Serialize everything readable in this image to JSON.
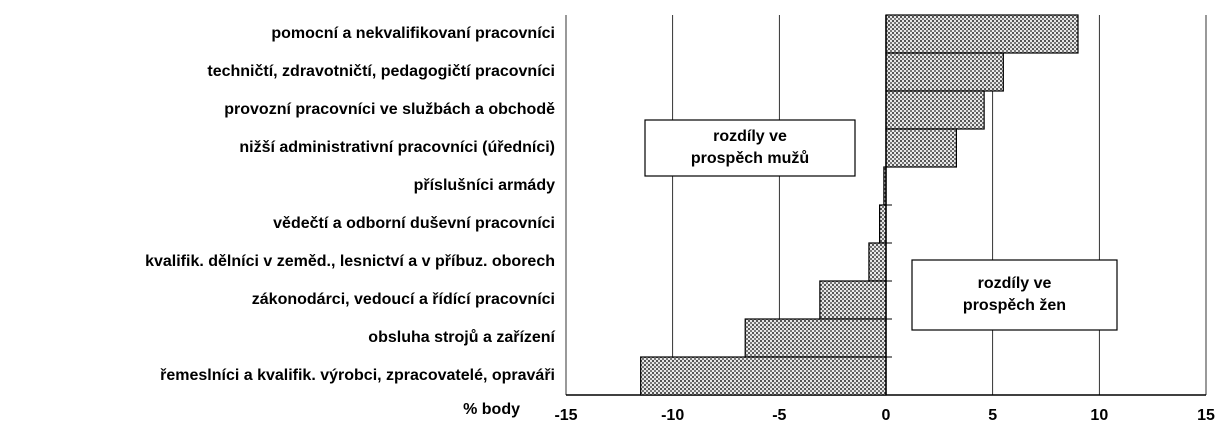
{
  "chart_data": {
    "type": "barh",
    "categories": [
      "pomocní a nekvalifikovaní pracovníci",
      "techničtí, zdravotničtí, pedagogičtí pracovníci",
      "provozní pracovníci ve službách a obchodě",
      "nižší administrativní pracovníci (úředníci)",
      "příslušníci armády",
      "vědečtí a odborní duševní pracovníci",
      "kvalifik. dělníci v zeměd., lesnictví a v příbuz. oborech",
      "zákonodárci, vedoucí a řídící pracovníci",
      "obsluha strojů a zařízení",
      "řemeslníci a kvalifik. výrobci, zpracovatelé, opraváři"
    ],
    "values": [
      9,
      5.5,
      4.6,
      3.3,
      -0.1,
      -0.3,
      -0.8,
      -3.1,
      -6.6,
      -11.5
    ],
    "color": "#b4b4b4",
    "x_label": "% body",
    "xlim": [
      -15,
      15
    ],
    "xticks": [
      -15,
      -10,
      -5,
      0,
      5,
      10,
      15
    ],
    "grid": true,
    "annotations": [
      [
        "rozdíly ve",
        "prospěch mužů"
      ],
      [
        "rozdíly ve",
        "prospěch žen"
      ]
    ]
  }
}
